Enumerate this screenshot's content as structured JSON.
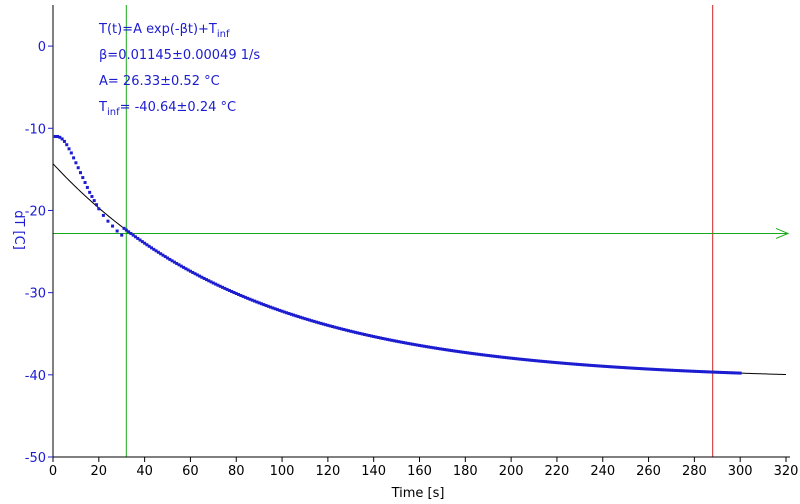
{
  "chart_data": {
    "type": "scatter",
    "xlabel": "Time [s]",
    "ylabel": "dT [C]",
    "xlim": [
      0,
      320
    ],
    "ylim": [
      -50,
      5
    ],
    "x_ticks": [
      0,
      20,
      40,
      60,
      80,
      100,
      120,
      140,
      160,
      180,
      200,
      220,
      240,
      260,
      280,
      300,
      320
    ],
    "y_ticks": [
      0,
      -10,
      -20,
      -30,
      -40,
      -50
    ],
    "annotations": [
      {
        "main": "T(t)=A exp(-βt)+T",
        "sub": "inf"
      },
      {
        "main": "β=0.01145±0.00049 1/s"
      },
      {
        "main": "A= 26.33±0.52 °C"
      },
      {
        "main": "T",
        "sub": "inf",
        "rest": "= -40.64±0.24 °C"
      }
    ],
    "fit": {
      "A": 26.33,
      "beta": 0.01145,
      "T_inf": -40.64,
      "x_range": [
        0,
        320
      ],
      "color": "#000000"
    },
    "measured": {
      "color": "#1c1cd0",
      "x_range": [
        1,
        300
      ],
      "early_points": [
        [
          1,
          -11.0
        ],
        [
          2,
          -11.0
        ],
        [
          3,
          -11.1
        ],
        [
          4,
          -11.3
        ],
        [
          5,
          -11.6
        ],
        [
          6,
          -12.0
        ],
        [
          7,
          -12.5
        ],
        [
          8,
          -13.0
        ],
        [
          9,
          -13.6
        ],
        [
          10,
          -14.2
        ],
        [
          11,
          -14.8
        ],
        [
          12,
          -15.4
        ],
        [
          13,
          -16.0
        ],
        [
          14,
          -16.6
        ],
        [
          15,
          -17.2
        ],
        [
          16,
          -17.8
        ],
        [
          17,
          -18.3
        ],
        [
          18,
          -18.8
        ],
        [
          19,
          -19.3
        ],
        [
          20,
          -19.8
        ],
        [
          22,
          -20.6
        ],
        [
          24,
          -21.3
        ],
        [
          26,
          -21.9
        ],
        [
          28,
          -22.5
        ],
        [
          30,
          -23.0
        ]
      ]
    },
    "cursor_vertical_green": 32,
    "cursor_vertical_red": 288,
    "cursor_horizontal_green": -22.8,
    "colors": {
      "axis": "#000000",
      "tick_label": "#000000",
      "ylabel": "#1c1cd0",
      "green": "#1aa81a",
      "red": "#d21f1f"
    }
  }
}
